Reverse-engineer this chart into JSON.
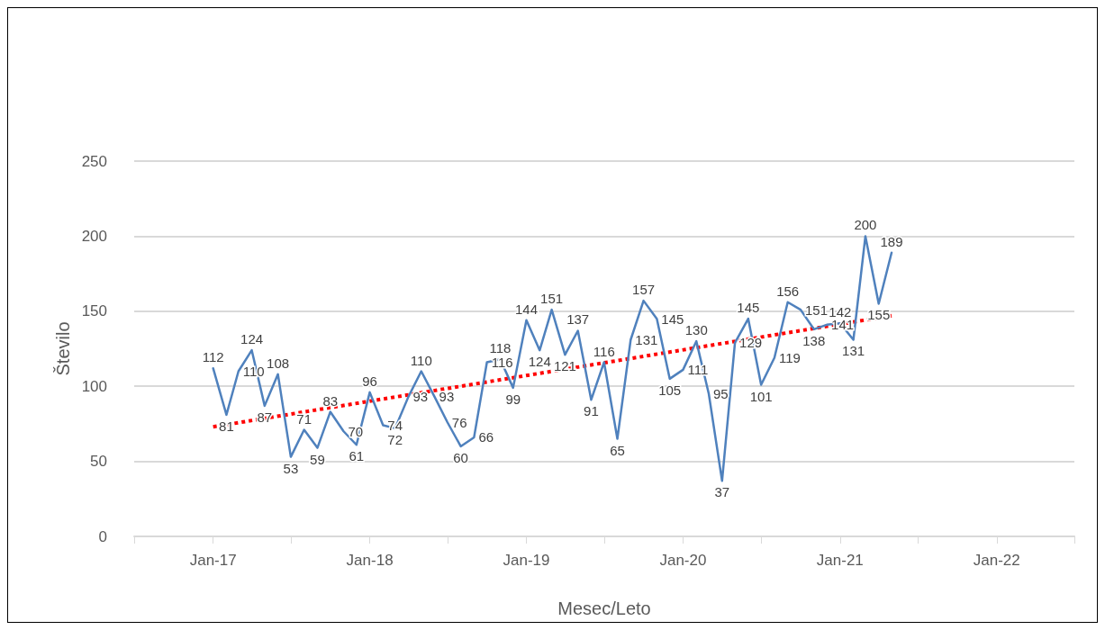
{
  "chart_data": {
    "type": "line",
    "xlabel": "Mesec/Leto",
    "ylabel": "Število",
    "x": [
      "2017-01",
      "2017-02",
      "2017-03",
      "2017-04",
      "2017-05",
      "2017-06",
      "2017-07",
      "2017-08",
      "2017-09",
      "2017-10",
      "2017-11",
      "2017-12",
      "2018-01",
      "2018-02",
      "2018-03",
      "2018-04",
      "2018-05",
      "2018-06",
      "2018-07",
      "2018-08",
      "2018-09",
      "2018-10",
      "2018-11",
      "2018-12",
      "2019-01",
      "2019-02",
      "2019-03",
      "2019-04",
      "2019-05",
      "2019-06",
      "2019-07",
      "2019-08",
      "2019-09",
      "2019-10",
      "2019-11",
      "2019-12",
      "2020-01",
      "2020-02",
      "2020-03",
      "2020-04",
      "2020-05",
      "2020-06",
      "2020-07",
      "2020-08",
      "2020-09",
      "2020-10",
      "2020-11",
      "2020-12",
      "2021-01",
      "2021-02",
      "2021-03",
      "2021-04",
      "2021-05"
    ],
    "series": [
      {
        "color": "#4f81bd",
        "values": [
          112,
          81,
          110,
          124,
          87,
          108,
          53,
          71,
          59,
          83,
          70,
          61,
          96,
          74,
          72,
          93,
          110,
          93,
          76,
          60,
          66,
          116,
          118,
          99,
          144,
          124,
          151,
          121,
          137,
          91,
          116,
          65,
          131,
          157,
          145,
          105,
          111,
          130,
          95,
          37,
          129,
          145,
          101,
          119,
          156,
          151,
          138,
          141,
          142,
          131,
          200,
          155,
          189
        ],
        "value_labels": [
          "112",
          "81",
          "110",
          "124",
          "87",
          "108",
          "53",
          "71",
          "59",
          "83",
          "70",
          "61",
          "96",
          "74",
          "72",
          "93",
          "110",
          "93",
          "76",
          "60",
          "66",
          "116",
          "118",
          "99",
          "144",
          "124",
          "151",
          "121",
          "137",
          "91",
          "116",
          "65",
          "131",
          "157",
          "145",
          "105",
          "111",
          "130",
          "95",
          "37",
          "129",
          "145",
          "101",
          "119",
          "156",
          "151",
          "138",
          "141",
          "142",
          "131",
          "200",
          "155",
          "189"
        ]
      },
      {
        "type": "line",
        "color": "#ff0000",
        "line_style": "dotted",
        "x": [
          "2017-01",
          "2021-05"
        ],
        "values": [
          73,
          147
        ]
      }
    ],
    "marker": "none",
    "line_style": "solid",
    "grid": "y",
    "xlim": [
      "2016-07",
      "2022-07"
    ],
    "xticks": [
      {
        "value": "2016-07",
        "label": null
      },
      {
        "value": "2017-01",
        "label": "Jan-17"
      },
      {
        "value": "2017-07",
        "label": null
      },
      {
        "value": "2018-01",
        "label": "Jan-18"
      },
      {
        "value": "2018-07",
        "label": null
      },
      {
        "value": "2019-01",
        "label": "Jan-19"
      },
      {
        "value": "2019-07",
        "label": null
      },
      {
        "value": "2020-01",
        "label": "Jan-20"
      },
      {
        "value": "2020-07",
        "label": null
      },
      {
        "value": "2021-01",
        "label": "Jan-21"
      },
      {
        "value": "2021-07",
        "label": null
      },
      {
        "value": "2022-01",
        "label": "Jan-22"
      },
      {
        "value": "2022-07",
        "label": null
      }
    ],
    "ylim": [
      0,
      250
    ],
    "yticks": [
      0,
      50,
      100,
      150,
      200,
      250
    ]
  }
}
